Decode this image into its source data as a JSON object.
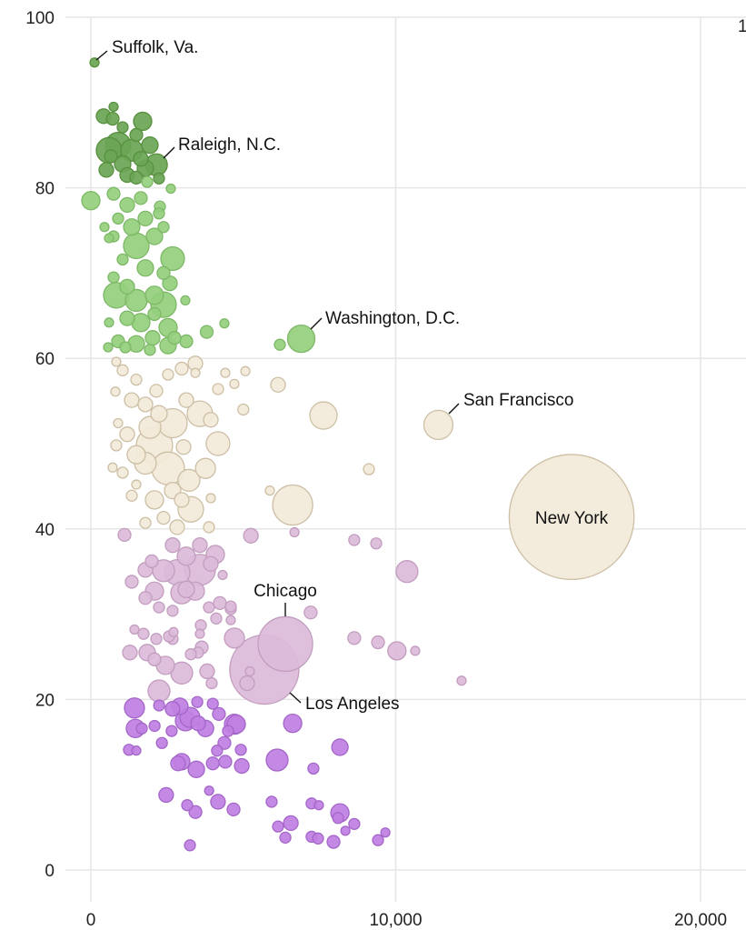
{
  "chart_data": {
    "type": "scatter",
    "subtype": "bubble",
    "title": "",
    "xlabel": "",
    "ylabel": "",
    "xlim": [
      0,
      21000
    ],
    "ylim": [
      0,
      100
    ],
    "grid": true,
    "x_ticks": [
      "0",
      "10,000",
      "20,000"
    ],
    "x_tick_values": [
      0,
      10000,
      20000
    ],
    "y_ticks": [
      "0",
      "20",
      "40",
      "60",
      "80",
      "100"
    ],
    "y_tick_values": [
      0,
      20,
      40,
      60,
      80,
      100
    ],
    "partial_text": "1",
    "point_format": [
      "x",
      "y",
      "size"
    ],
    "color_bands": [
      {
        "min": 81,
        "fill": "#6aa655",
        "stroke": "#58903f"
      },
      {
        "min": 60,
        "fill": "#95d07e",
        "stroke": "#7db867"
      },
      {
        "min": 40,
        "fill": "#f2e9d8",
        "stroke": "#cdbfa5"
      },
      {
        "min": 20,
        "fill": "#dcbad9",
        "stroke": "#c29dbf"
      },
      {
        "min": 0,
        "fill": "#c080e2",
        "stroke": "#a466c8"
      }
    ],
    "annotations": [
      {
        "text": "Suffolk, Va.",
        "point": [
          120,
          94.7,
          44
        ]
      },
      {
        "text": "Raleigh, N.C.",
        "point": [
          2150,
          82.7,
          256
        ]
      },
      {
        "text": "Washington, D.C.",
        "point": [
          6900,
          62.3,
          400
        ]
      },
      {
        "text": "San Francisco",
        "point": [
          11400,
          52.2,
          455
        ]
      },
      {
        "text": "New York",
        "point": [
          15770,
          41.4,
          8400
        ]
      },
      {
        "text": "Chicago",
        "point": [
          6380,
          26.5,
          1600
        ]
      },
      {
        "text": "Los Angeles",
        "point": [
          5690,
          23.5,
          2567
        ]
      }
    ],
    "points": [
      [
        745,
        89.5,
        44
      ],
      [
        417,
        88.4,
        114
      ],
      [
        715,
        88.1,
        87
      ],
      [
        1699,
        87.8,
        178
      ],
      [
        1043,
        87.1,
        64
      ],
      [
        1490,
        86.2,
        87
      ],
      [
        894,
        85.0,
        349
      ],
      [
        596,
        84.4,
        349
      ],
      [
        1341,
        84.4,
        256
      ],
      [
        1937,
        85.0,
        144
      ],
      [
        1639,
        83.4,
        114
      ],
      [
        1043,
        82.8,
        144
      ],
      [
        507,
        82.1,
        114
      ],
      [
        1192,
        81.5,
        114
      ],
      [
        1788,
        82.3,
        144
      ],
      [
        2235,
        81.1,
        64
      ],
      [
        656,
        83.7,
        87
      ],
      [
        1490,
        81.2,
        87
      ],
      [
        1848,
        80.7,
        64
      ],
      [
        0,
        78.5,
        178
      ],
      [
        2622,
        79.9,
        44
      ],
      [
        2265,
        77.8,
        64
      ],
      [
        2593,
        68.8,
        114
      ],
      [
        3099,
        66.8,
        44
      ],
      [
        745,
        79.3,
        87
      ],
      [
        1192,
        78.0,
        114
      ],
      [
        1639,
        78.8,
        87
      ],
      [
        894,
        76.4,
        64
      ],
      [
        1341,
        75.4,
        144
      ],
      [
        1788,
        76.4,
        114
      ],
      [
        2235,
        77.0,
        64
      ],
      [
        745,
        74.3,
        64
      ],
      [
        1490,
        73.2,
        349
      ],
      [
        2086,
        74.3,
        144
      ],
      [
        2682,
        71.7,
        300
      ],
      [
        1043,
        71.6,
        64
      ],
      [
        1788,
        70.6,
        144
      ],
      [
        2384,
        70.0,
        87
      ],
      [
        834,
        67.4,
        349
      ],
      [
        1490,
        66.8,
        256
      ],
      [
        2086,
        67.4,
        178
      ],
      [
        2384,
        66.3,
        349
      ],
      [
        1192,
        64.7,
        114
      ],
      [
        1639,
        64.2,
        178
      ],
      [
        2086,
        65.2,
        87
      ],
      [
        2533,
        63.6,
        178
      ],
      [
        596,
        64.2,
        44
      ],
      [
        894,
        62.0,
        87
      ],
      [
        1490,
        61.7,
        144
      ],
      [
        2026,
        62.4,
        114
      ],
      [
        2533,
        61.5,
        144
      ],
      [
        745,
        69.5,
        64
      ],
      [
        1192,
        68.4,
        114
      ],
      [
        3129,
        62.0,
        87
      ],
      [
        2742,
        62.4,
        87
      ],
      [
        566,
        61.3,
        44
      ],
      [
        1937,
        61.0,
        64
      ],
      [
        1132,
        61.3,
        64
      ],
      [
        596,
        74.1,
        44
      ],
      [
        447,
        75.4,
        44
      ],
      [
        2384,
        75.4,
        64
      ],
      [
        6200,
        61.6,
        64
      ],
      [
        4380,
        64.1,
        44
      ],
      [
        3800,
        63.1,
        87
      ],
      [
        834,
        59.6,
        44
      ],
      [
        1043,
        58.6,
        64
      ],
      [
        805,
        56.1,
        44
      ],
      [
        1490,
        57.5,
        64
      ],
      [
        1341,
        55.1,
        114
      ],
      [
        1788,
        54.6,
        114
      ],
      [
        2146,
        56.2,
        87
      ],
      [
        2533,
        58.1,
        64
      ],
      [
        2980,
        58.8,
        87
      ],
      [
        3427,
        58.3,
        44
      ],
      [
        3129,
        55.1,
        114
      ],
      [
        3576,
        53.5,
        349
      ],
      [
        2682,
        52.4,
        455
      ],
      [
        1937,
        51.9,
        256
      ],
      [
        1192,
        51.1,
        114
      ],
      [
        834,
        49.8,
        64
      ],
      [
        1490,
        48.7,
        178
      ],
      [
        2086,
        49.8,
        711
      ],
      [
        2533,
        47.1,
        577
      ],
      [
        1788,
        47.7,
        256
      ],
      [
        3218,
        45.7,
        256
      ],
      [
        1043,
        46.6,
        64
      ],
      [
        1341,
        43.9,
        64
      ],
      [
        2086,
        43.4,
        178
      ],
      [
        2682,
        44.5,
        144
      ],
      [
        3278,
        42.3,
        349
      ],
      [
        2831,
        40.2,
        114
      ],
      [
        1788,
        40.7,
        64
      ],
      [
        2384,
        41.3,
        87
      ],
      [
        3934,
        52.8,
        114
      ],
      [
        3040,
        49.6,
        114
      ],
      [
        3934,
        43.6,
        44
      ],
      [
        2980,
        43.4,
        114
      ],
      [
        894,
        52.4,
        44
      ],
      [
        2235,
        53.5,
        144
      ],
      [
        4172,
        56.4,
        64
      ],
      [
        4708,
        57.0,
        44
      ],
      [
        4410,
        58.3,
        44
      ],
      [
        3427,
        59.4,
        114
      ],
      [
        715,
        47.2,
        44
      ],
      [
        1490,
        45.2,
        44
      ],
      [
        3874,
        40.2,
        64
      ],
      [
        7630,
        53.3,
        400
      ],
      [
        6140,
        56.9,
        114
      ],
      [
        6620,
        42.8,
        861
      ],
      [
        5870,
        44.5,
        44
      ],
      [
        9120,
        47.0,
        64
      ],
      [
        5070,
        58.5,
        44
      ],
      [
        5000,
        54.0,
        64
      ],
      [
        4170,
        50.0,
        300
      ],
      [
        3760,
        47.1,
        215
      ],
      [
        1103,
        39.3,
        87
      ],
      [
        2682,
        38.1,
        114
      ],
      [
        3129,
        36.8,
        178
      ],
      [
        3576,
        38.1,
        114
      ],
      [
        1997,
        36.2,
        87
      ],
      [
        4083,
        37.0,
        178
      ],
      [
        1788,
        35.2,
        114
      ],
      [
        2384,
        35.1,
        256
      ],
      [
        2831,
        34.9,
        349
      ],
      [
        3576,
        35.2,
        514
      ],
      [
        1341,
        33.8,
        87
      ],
      [
        2086,
        32.7,
        178
      ],
      [
        2980,
        32.5,
        256
      ],
      [
        3427,
        32.7,
        178
      ],
      [
        3934,
        35.9,
        114
      ],
      [
        1788,
        31.9,
        87
      ],
      [
        2235,
        30.8,
        64
      ],
      [
        2682,
        30.4,
        64
      ],
      [
        3129,
        32.9,
        144
      ],
      [
        4321,
        34.6,
        44
      ],
      [
        3874,
        30.8,
        64
      ],
      [
        4232,
        31.3,
        87
      ],
      [
        4589,
        30.6,
        64
      ],
      [
        1430,
        28.2,
        44
      ],
      [
        1728,
        27.7,
        64
      ],
      [
        2146,
        27.1,
        64
      ],
      [
        2682,
        27.1,
        64
      ],
      [
        2712,
        27.9,
        44
      ],
      [
        1848,
        25.5,
        144
      ],
      [
        2086,
        24.7,
        87
      ],
      [
        2444,
        24.0,
        178
      ],
      [
        2980,
        23.1,
        256
      ],
      [
        2235,
        21.0,
        256
      ],
      [
        3516,
        25.5,
        64
      ],
      [
        3636,
        26.1,
        87
      ],
      [
        3814,
        23.3,
        114
      ],
      [
        3963,
        21.9,
        64
      ],
      [
        2563,
        27.4,
        64
      ],
      [
        3278,
        25.3,
        64
      ],
      [
        3606,
        28.7,
        64
      ],
      [
        4112,
        29.5,
        64
      ],
      [
        4589,
        29.3,
        44
      ],
      [
        3576,
        27.7,
        44
      ],
      [
        5126,
        21.9,
        114
      ],
      [
        5215,
        23.3,
        44
      ],
      [
        1281,
        25.5,
        114
      ],
      [
        10370,
        35.0,
        256
      ],
      [
        8640,
        38.7,
        64
      ],
      [
        9360,
        38.3,
        64
      ],
      [
        5250,
        39.2,
        114
      ],
      [
        6680,
        39.6,
        44
      ],
      [
        10040,
        25.7,
        178
      ],
      [
        9420,
        26.7,
        87
      ],
      [
        8640,
        27.2,
        87
      ],
      [
        10640,
        25.7,
        44
      ],
      [
        12160,
        22.2,
        44
      ],
      [
        7210,
        30.2,
        87
      ],
      [
        4710,
        27.2,
        215
      ],
      [
        4590,
        30.9,
        64
      ],
      [
        6620,
        17.2,
        178
      ],
      [
        8170,
        14.4,
        144
      ],
      [
        6110,
        12.9,
        256
      ],
      [
        7300,
        11.9,
        64
      ],
      [
        8170,
        6.7,
        178
      ],
      [
        4710,
        17.1,
        215
      ],
      [
        4170,
        8.0,
        114
      ],
      [
        4950,
        12.2,
        114
      ],
      [
        4920,
        14.1,
        64
      ],
      [
        5930,
        8.0,
        64
      ],
      [
        6560,
        5.5,
        114
      ],
      [
        6140,
        5.1,
        64
      ],
      [
        6380,
        3.8,
        64
      ],
      [
        7240,
        7.8,
        64
      ],
      [
        7480,
        7.6,
        44
      ],
      [
        7240,
        3.9,
        64
      ],
      [
        7450,
        3.7,
        64
      ],
      [
        7960,
        3.3,
        87
      ],
      [
        8640,
        5.4,
        64
      ],
      [
        8350,
        4.6,
        44
      ],
      [
        8110,
        6.1,
        64
      ],
      [
        9420,
        3.5,
        64
      ],
      [
        9660,
        4.4,
        44
      ],
      [
        3250,
        2.9,
        64
      ],
      [
        3160,
        7.6,
        64
      ],
      [
        3430,
        6.8,
        87
      ],
      [
        2470,
        8.8,
        114
      ],
      [
        3880,
        9.3,
        44
      ],
      [
        4680,
        7.1,
        87
      ],
      [
        3460,
        11.8,
        144
      ],
      [
        2980,
        12.7,
        144
      ],
      [
        2860,
        12.5,
        114
      ],
      [
        1250,
        14.1,
        64
      ],
      [
        1490,
        14.0,
        44
      ],
      [
        1460,
        16.6,
        178
      ],
      [
        1430,
        19.0,
        215
      ],
      [
        1670,
        16.6,
        64
      ],
      [
        2090,
        16.9,
        64
      ],
      [
        2330,
        14.9,
        64
      ],
      [
        2650,
        16.3,
        64
      ],
      [
        2680,
        18.9,
        114
      ],
      [
        3100,
        17.5,
        215
      ],
      [
        2920,
        19.2,
        144
      ],
      [
        3490,
        19.7,
        64
      ],
      [
        4000,
        19.5,
        64
      ],
      [
        4200,
        18.3,
        87
      ],
      [
        4500,
        16.3,
        64
      ],
      [
        4380,
        14.9,
        87
      ],
      [
        4770,
        17.1,
        178
      ],
      [
        3250,
        17.9,
        215
      ],
      [
        2240,
        19.3,
        64
      ],
      [
        3520,
        17.2,
        114
      ],
      [
        3760,
        16.6,
        144
      ],
      [
        4140,
        14.0,
        64
      ],
      [
        4000,
        12.5,
        87
      ],
      [
        4410,
        12.7,
        87
      ]
    ]
  }
}
